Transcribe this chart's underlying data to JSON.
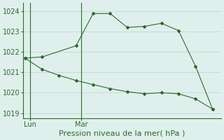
{
  "line1_x": [
    0,
    1,
    3,
    4,
    5,
    6,
    7,
    8,
    9,
    10,
    11
  ],
  "line1_y": [
    1021.7,
    1021.75,
    1022.3,
    1023.88,
    1023.88,
    1023.2,
    1023.25,
    1023.4,
    1023.05,
    1021.3,
    1019.2
  ],
  "line2_x": [
    0,
    1,
    2,
    3,
    4,
    5,
    6,
    7,
    8,
    9,
    10,
    11
  ],
  "line2_y": [
    1021.7,
    1021.15,
    1020.85,
    1020.6,
    1020.4,
    1020.2,
    1020.05,
    1019.95,
    1020.0,
    1019.95,
    1019.7,
    1019.2
  ],
  "line_color": "#2d6a2d",
  "background_color": "#dff0ec",
  "grid_color": "#c0d8d4",
  "xlabel": "Pression niveau de la mer( hPa )",
  "ylim": [
    1018.75,
    1024.4
  ],
  "yticks": [
    1019,
    1020,
    1021,
    1022,
    1023,
    1024
  ],
  "xlim": [
    -0.1,
    11.5
  ],
  "lun_x": 0.3,
  "mar_x": 3.3,
  "tick_label_lun": "Lun",
  "tick_label_mar": "Mar",
  "xlabel_fontsize": 8,
  "ytick_fontsize": 7,
  "xtick_fontsize": 7
}
